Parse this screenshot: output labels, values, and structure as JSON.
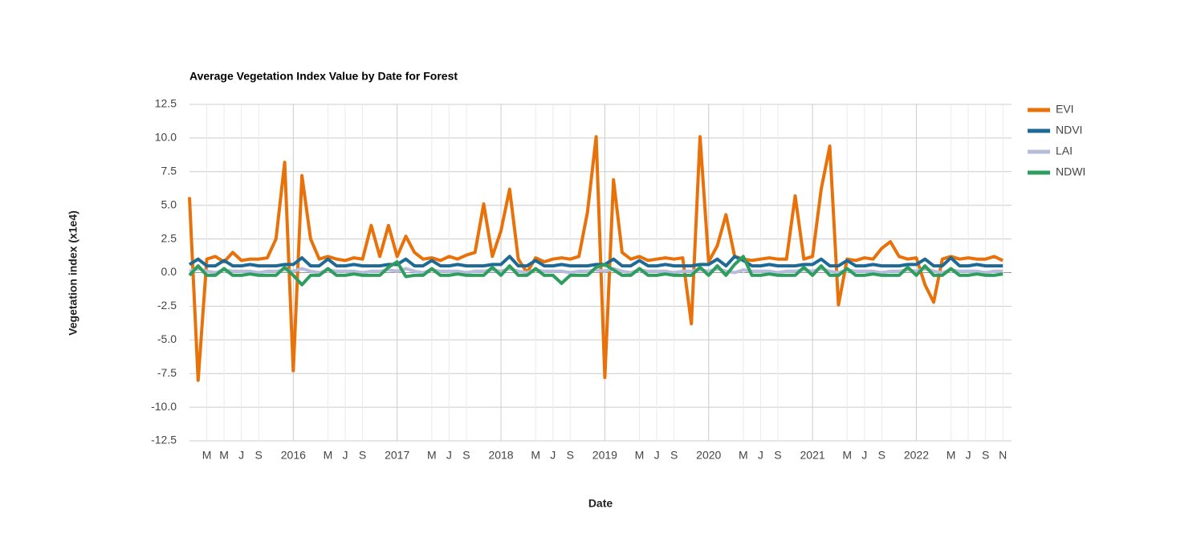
{
  "chart_data": {
    "type": "line",
    "title": "Average Vegetation Index Value by Date for Forest",
    "x_label": "Date",
    "y_label": "Vegetation index (x1e4)",
    "legend": "right",
    "grid": true,
    "xlim": [
      "2015-01",
      "2022-12"
    ],
    "ylim": [
      -12.5,
      12.5
    ],
    "yticks": [
      12.5,
      {
        "value": 10,
        "label": "10.0"
      },
      7.5,
      {
        "value": 5,
        "label": "5.0"
      },
      2.5,
      {
        "value": 0,
        "label": "0.0"
      },
      -2.5,
      {
        "value": -5,
        "label": "-5.0"
      },
      -7.5,
      {
        "value": -10,
        "label": "-10.0"
      },
      -12.5
    ],
    "xticks": [
      {
        "value": "2015-03",
        "label": "M"
      },
      {
        "value": "2015-05",
        "label": "M"
      },
      {
        "value": "2015-07",
        "label": "J"
      },
      {
        "value": "2015-09",
        "label": "S"
      },
      {
        "value": "2016-01",
        "label": "2016"
      },
      {
        "value": "2016-05",
        "label": "M"
      },
      {
        "value": "2016-07",
        "label": "J"
      },
      {
        "value": "2016-09",
        "label": "S"
      },
      {
        "value": "2017-01",
        "label": "2017"
      },
      {
        "value": "2017-05",
        "label": "M"
      },
      {
        "value": "2017-07",
        "label": "J"
      },
      {
        "value": "2017-09",
        "label": "S"
      },
      {
        "value": "2018-01",
        "label": "2018"
      },
      {
        "value": "2018-05",
        "label": "M"
      },
      {
        "value": "2018-07",
        "label": "J"
      },
      {
        "value": "2018-09",
        "label": "S"
      },
      {
        "value": "2019-01",
        "label": "2019"
      },
      {
        "value": "2019-05",
        "label": "M"
      },
      {
        "value": "2019-07",
        "label": "J"
      },
      {
        "value": "2019-09",
        "label": "S"
      },
      {
        "value": "2020-01",
        "label": "2020"
      },
      {
        "value": "2020-05",
        "label": "M"
      },
      {
        "value": "2020-07",
        "label": "J"
      },
      {
        "value": "2020-09",
        "label": "S"
      },
      {
        "value": "2021-01",
        "label": "2021"
      },
      {
        "value": "2021-05",
        "label": "M"
      },
      {
        "value": "2021-07",
        "label": "J"
      },
      {
        "value": "2021-09",
        "label": "S"
      },
      {
        "value": "2022-01",
        "label": "2022"
      },
      {
        "value": "2022-05",
        "label": "M"
      },
      {
        "value": "2022-07",
        "label": "J"
      },
      {
        "value": "2022-09",
        "label": "S"
      },
      {
        "value": "2022-11",
        "label": "N"
      }
    ],
    "x": [
      "2015-01",
      "2015-02",
      "2015-03",
      "2015-04",
      "2015-05",
      "2015-06",
      "2015-07",
      "2015-08",
      "2015-09",
      "2015-10",
      "2015-11",
      "2015-12",
      "2016-01",
      "2016-02",
      "2016-03",
      "2016-04",
      "2016-05",
      "2016-06",
      "2016-07",
      "2016-08",
      "2016-09",
      "2016-10",
      "2016-11",
      "2016-12",
      "2017-01",
      "2017-02",
      "2017-03",
      "2017-04",
      "2017-05",
      "2017-06",
      "2017-07",
      "2017-08",
      "2017-09",
      "2017-10",
      "2017-11",
      "2017-12",
      "2018-01",
      "2018-02",
      "2018-03",
      "2018-04",
      "2018-05",
      "2018-06",
      "2018-07",
      "2018-08",
      "2018-09",
      "2018-10",
      "2018-11",
      "2018-12",
      "2019-01",
      "2019-02",
      "2019-03",
      "2019-04",
      "2019-05",
      "2019-06",
      "2019-07",
      "2019-08",
      "2019-09",
      "2019-10",
      "2019-11",
      "2019-12",
      "2020-01",
      "2020-02",
      "2020-03",
      "2020-04",
      "2020-05",
      "2020-06",
      "2020-07",
      "2020-08",
      "2020-09",
      "2020-10",
      "2020-11",
      "2020-12",
      "2021-01",
      "2021-02",
      "2021-03",
      "2021-04",
      "2021-05",
      "2021-06",
      "2021-07",
      "2021-08",
      "2021-09",
      "2021-10",
      "2021-11",
      "2021-12",
      "2022-01",
      "2022-02",
      "2022-03",
      "2022-04",
      "2022-05",
      "2022-06",
      "2022-07",
      "2022-08",
      "2022-09",
      "2022-10",
      "2022-11"
    ],
    "series": [
      {
        "name": "EVI",
        "color": "#e8710a",
        "values": [
          5.6,
          -8.0,
          1.0,
          1.2,
          0.8,
          1.5,
          0.9,
          1.0,
          1.0,
          1.1,
          2.5,
          8.2,
          -7.3,
          7.2,
          2.5,
          1.0,
          1.2,
          1.0,
          0.9,
          1.1,
          1.0,
          3.5,
          1.2,
          3.5,
          1.2,
          2.7,
          1.5,
          1.0,
          1.1,
          0.9,
          1.2,
          1.0,
          1.3,
          1.5,
          5.1,
          1.2,
          3.1,
          6.2,
          1.0,
          0.0,
          1.1,
          0.8,
          1.0,
          1.1,
          1.0,
          1.2,
          4.5,
          10.1,
          -7.8,
          6.9,
          1.5,
          1.0,
          1.2,
          0.9,
          1.0,
          1.1,
          1.0,
          1.1,
          -3.8,
          10.1,
          0.8,
          2.0,
          4.3,
          1.2,
          1.0,
          0.9,
          1.0,
          1.1,
          1.0,
          1.0,
          5.7,
          1.0,
          1.2,
          6.2,
          9.4,
          -2.4,
          1.0,
          0.9,
          1.1,
          1.0,
          1.8,
          2.3,
          1.2,
          1.0,
          1.1,
          -0.9,
          -2.2,
          1.0,
          1.2,
          1.0,
          1.1,
          1.0,
          1.0,
          1.2,
          0.9
        ]
      },
      {
        "name": "NDVI",
        "color": "#1f6a94",
        "values": [
          0.6,
          1.0,
          0.5,
          0.5,
          0.9,
          0.5,
          0.5,
          0.6,
          0.5,
          0.5,
          0.5,
          0.6,
          0.6,
          1.1,
          0.5,
          0.5,
          1.0,
          0.5,
          0.5,
          0.6,
          0.5,
          0.5,
          0.5,
          0.6,
          0.6,
          1.0,
          0.5,
          0.5,
          0.9,
          0.5,
          0.5,
          0.6,
          0.5,
          0.5,
          0.5,
          0.6,
          0.6,
          1.2,
          0.5,
          0.5,
          0.9,
          0.5,
          0.5,
          0.6,
          0.5,
          0.5,
          0.5,
          0.6,
          0.6,
          1.0,
          0.5,
          0.5,
          0.9,
          0.5,
          0.5,
          0.6,
          0.5,
          0.5,
          0.5,
          0.6,
          0.6,
          1.0,
          0.5,
          1.2,
          0.9,
          0.5,
          0.5,
          0.6,
          0.5,
          0.5,
          0.5,
          0.6,
          0.6,
          1.0,
          0.5,
          0.5,
          0.9,
          0.5,
          0.5,
          0.6,
          0.5,
          0.5,
          0.5,
          0.6,
          0.6,
          1.0,
          0.5,
          0.5,
          1.1,
          0.5,
          0.5,
          0.6,
          0.5,
          0.5,
          0.5
        ]
      },
      {
        "name": "LAI",
        "color": "#b7bcdc",
        "values": [
          0.1,
          0.3,
          0.1,
          0.0,
          0.2,
          0.1,
          0.1,
          0.1,
          0.0,
          0.1,
          0.1,
          0.2,
          0.1,
          0.3,
          0.1,
          0.0,
          0.2,
          0.1,
          0.1,
          0.1,
          0.0,
          0.1,
          0.1,
          0.2,
          0.1,
          0.3,
          0.1,
          0.0,
          0.2,
          0.1,
          0.1,
          0.1,
          0.0,
          0.1,
          0.1,
          0.2,
          0.1,
          0.3,
          0.1,
          0.0,
          0.2,
          0.1,
          0.1,
          0.1,
          0.0,
          0.1,
          0.1,
          0.2,
          0.1,
          0.3,
          0.1,
          0.0,
          0.2,
          0.1,
          0.1,
          0.1,
          0.0,
          0.1,
          0.1,
          0.2,
          0.1,
          0.3,
          0.1,
          0.0,
          0.2,
          0.1,
          0.1,
          0.1,
          0.0,
          0.1,
          0.1,
          0.2,
          0.1,
          0.3,
          0.1,
          0.0,
          0.2,
          0.1,
          0.1,
          0.1,
          0.0,
          0.1,
          0.1,
          0.2,
          0.1,
          0.3,
          0.1,
          0.0,
          0.2,
          0.1,
          0.1,
          0.1,
          0.0,
          0.1,
          0.1
        ]
      },
      {
        "name": "NDWI",
        "color": "#2e9e5e",
        "values": [
          -0.2,
          0.5,
          -0.2,
          -0.2,
          0.3,
          -0.2,
          -0.2,
          -0.1,
          -0.2,
          -0.2,
          -0.2,
          0.4,
          -0.2,
          -0.9,
          -0.2,
          -0.2,
          0.3,
          -0.2,
          -0.2,
          -0.1,
          -0.2,
          -0.2,
          -0.2,
          0.4,
          0.8,
          -0.3,
          -0.2,
          -0.2,
          0.3,
          -0.2,
          -0.2,
          -0.1,
          -0.2,
          -0.2,
          -0.2,
          0.4,
          -0.2,
          0.5,
          -0.2,
          -0.2,
          0.3,
          -0.2,
          -0.2,
          -0.8,
          -0.2,
          -0.2,
          -0.2,
          0.4,
          0.6,
          0.2,
          -0.2,
          -0.2,
          0.3,
          -0.2,
          -0.2,
          -0.1,
          -0.2,
          -0.2,
          -0.2,
          0.4,
          -0.2,
          0.5,
          -0.2,
          0.6,
          1.2,
          -0.2,
          -0.2,
          -0.1,
          -0.2,
          -0.2,
          -0.2,
          0.4,
          -0.2,
          0.5,
          -0.2,
          -0.2,
          0.3,
          -0.2,
          -0.2,
          -0.1,
          -0.2,
          -0.2,
          -0.2,
          0.4,
          -0.2,
          0.5,
          -0.2,
          -0.2,
          0.3,
          -0.2,
          -0.2,
          -0.1,
          -0.2,
          -0.2,
          -0.1
        ]
      }
    ]
  }
}
